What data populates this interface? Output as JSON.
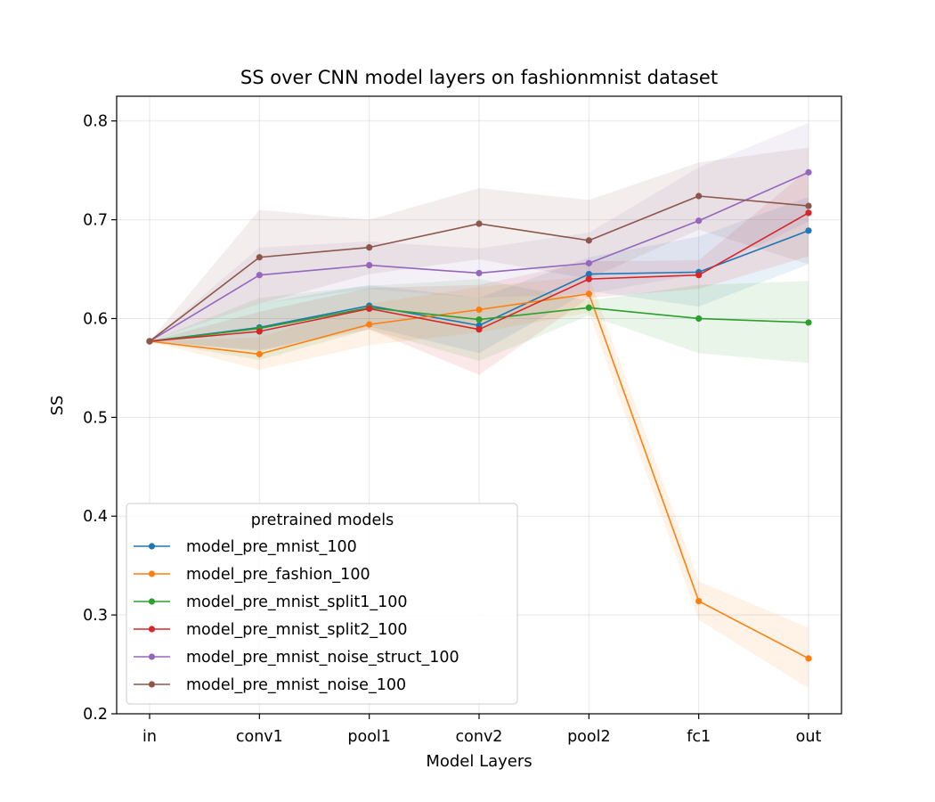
{
  "chart_data": {
    "type": "line",
    "title": "SS over CNN model layers on fashionmnist dataset",
    "xlabel": "Model Layers",
    "ylabel": "SS",
    "categories": [
      "in",
      "conv1",
      "pool1",
      "conv2",
      "pool2",
      "fc1",
      "out"
    ],
    "ylim": [
      0.2,
      0.825
    ],
    "yticks": [
      0.2,
      0.3,
      0.4,
      0.5,
      0.6,
      0.7,
      0.8
    ],
    "ytick_labels": [
      "0.2",
      "0.3",
      "0.4",
      "0.5",
      "0.6",
      "0.7",
      "0.8"
    ],
    "grid": true,
    "legend": {
      "title": "pretrained models",
      "placement": "lower left"
    },
    "series": [
      {
        "name": "model_pre_mnist_100",
        "color": "#1f77b4",
        "values": [
          0.577,
          0.591,
          0.613,
          0.593,
          0.645,
          0.647,
          0.689
        ],
        "lower": [
          0.577,
          0.568,
          0.592,
          0.565,
          0.628,
          0.612,
          0.655
        ],
        "upper": [
          0.577,
          0.615,
          0.634,
          0.621,
          0.662,
          0.683,
          0.723
        ]
      },
      {
        "name": "model_pre_fashion_100",
        "color": "#ff7f0e",
        "values": [
          0.577,
          0.564,
          0.594,
          0.609,
          0.625,
          0.314,
          0.256
        ],
        "lower": [
          0.577,
          0.548,
          0.573,
          0.586,
          0.606,
          0.295,
          0.226
        ],
        "upper": [
          0.577,
          0.581,
          0.615,
          0.632,
          0.643,
          0.334,
          0.287
        ]
      },
      {
        "name": "model_pre_mnist_split1_100",
        "color": "#2ca02c",
        "values": [
          0.577,
          0.59,
          0.611,
          0.599,
          0.611,
          0.6,
          0.596
        ],
        "lower": [
          0.577,
          0.558,
          0.589,
          0.557,
          0.603,
          0.565,
          0.555
        ],
        "upper": [
          0.577,
          0.621,
          0.633,
          0.64,
          0.618,
          0.634,
          0.638
        ]
      },
      {
        "name": "model_pre_mnist_split2_100",
        "color": "#d62728",
        "values": [
          0.577,
          0.587,
          0.61,
          0.589,
          0.64,
          0.644,
          0.707
        ],
        "lower": [
          0.577,
          0.567,
          0.589,
          0.543,
          0.621,
          0.63,
          0.663
        ],
        "upper": [
          0.577,
          0.607,
          0.631,
          0.634,
          0.658,
          0.659,
          0.751
        ]
      },
      {
        "name": "model_pre_mnist_noise_struct_100",
        "color": "#9467bd",
        "values": [
          0.577,
          0.644,
          0.654,
          0.646,
          0.656,
          0.699,
          0.748
        ],
        "lower": [
          0.577,
          0.615,
          0.63,
          0.621,
          0.625,
          0.645,
          0.698
        ],
        "upper": [
          0.577,
          0.672,
          0.678,
          0.671,
          0.687,
          0.753,
          0.798
        ]
      },
      {
        "name": "model_pre_mnist_noise_100",
        "color": "#8c564b",
        "values": [
          0.577,
          0.662,
          0.672,
          0.696,
          0.679,
          0.724,
          0.714
        ],
        "lower": [
          0.577,
          0.615,
          0.645,
          0.66,
          0.64,
          0.69,
          0.655
        ],
        "upper": [
          0.577,
          0.71,
          0.7,
          0.732,
          0.72,
          0.758,
          0.773
        ]
      }
    ]
  }
}
